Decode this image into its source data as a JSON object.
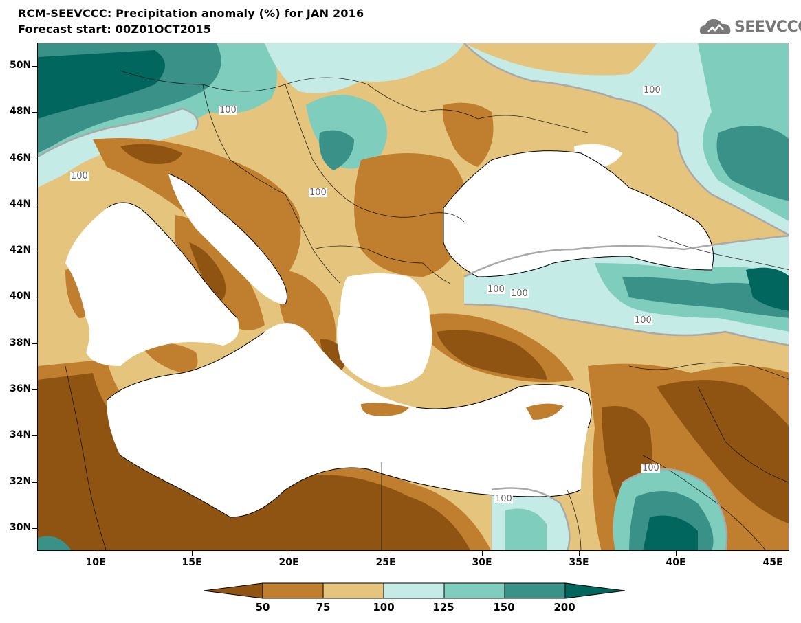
{
  "title": {
    "line1": "RCM-SEEVCCC: Precipitation anomaly (%) for JAN 2016",
    "line2": "Forecast start: 00Z01OCT2015"
  },
  "logo": {
    "text": "SEEVCCC",
    "icon": "cloud-icon"
  },
  "axes": {
    "lat_labels": [
      "50N",
      "48N",
      "46N",
      "44N",
      "42N",
      "40N",
      "38N",
      "36N",
      "34N",
      "32N",
      "30N"
    ],
    "lon_labels": [
      "10E",
      "15E",
      "20E",
      "25E",
      "30E",
      "35E",
      "40E",
      "45E"
    ]
  },
  "legend": {
    "boundaries": [
      "50",
      "75",
      "100",
      "125",
      "150",
      "200"
    ],
    "colors": [
      "#8f5412",
      "#c07f2e",
      "#e5c47d",
      "#c5ebe6",
      "#7fcdbd",
      "#3a9188",
      "#01665e"
    ]
  },
  "contour_labels": [
    "100",
    "100",
    "100",
    "100",
    "100",
    "100",
    "100",
    "100",
    "100"
  ]
}
